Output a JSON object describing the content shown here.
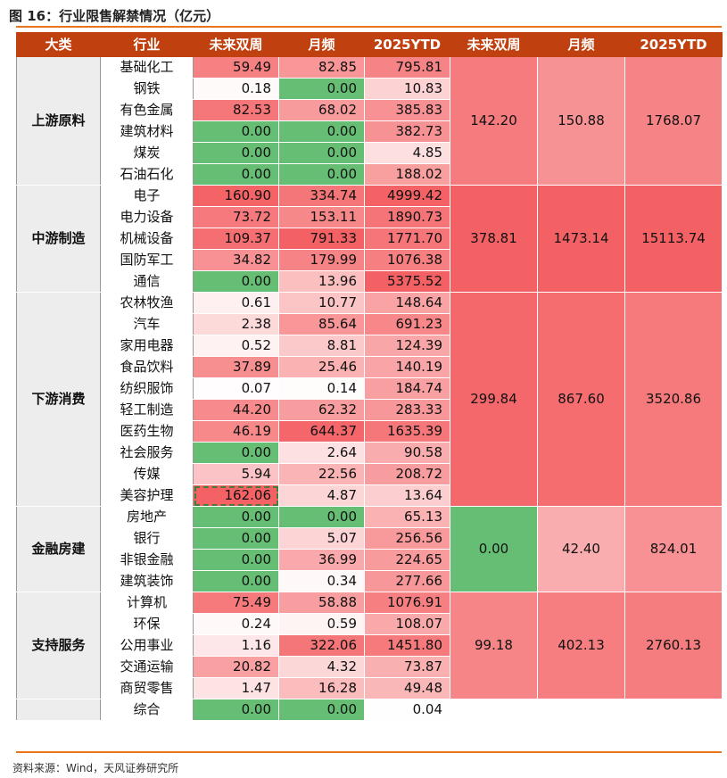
{
  "title": "图 16：行业限售解禁情况（亿元）",
  "source": "资料来源：Wind，天风证券研究所",
  "headers": [
    "大类",
    "行业",
    "未来双周",
    "月频",
    "2025YTD",
    "未来双周",
    "月频",
    "2025YTD"
  ],
  "colors": {
    "header": "#C0410F",
    "accent_line": "#E8741C",
    "zero_green": "#66BE74",
    "high_red": "#F46164",
    "category_bg": "#EDEDED"
  },
  "groups": [
    {
      "category": "上游原料",
      "agg": [
        "142.20",
        "150.88",
        "1768.07"
      ],
      "rows": [
        [
          "基础化工",
          "59.49",
          "82.85",
          "795.81"
        ],
        [
          "钢铁",
          "0.18",
          "0.00",
          "10.83"
        ],
        [
          "有色金属",
          "82.53",
          "68.02",
          "385.83"
        ],
        [
          "建筑材料",
          "0.00",
          "0.00",
          "382.73"
        ],
        [
          "煤炭",
          "0.00",
          "0.00",
          "4.85"
        ],
        [
          "石油石化",
          "0.00",
          "0.00",
          "188.02"
        ]
      ]
    },
    {
      "category": "中游制造",
      "agg": [
        "378.81",
        "1473.14",
        "15113.74"
      ],
      "rows": [
        [
          "电子",
          "160.90",
          "334.74",
          "4999.42"
        ],
        [
          "电力设备",
          "73.72",
          "153.11",
          "1890.73"
        ],
        [
          "机械设备",
          "109.37",
          "791.33",
          "1771.70"
        ],
        [
          "国防军工",
          "34.82",
          "179.99",
          "1076.38"
        ],
        [
          "通信",
          "0.00",
          "13.96",
          "5375.52"
        ]
      ]
    },
    {
      "category": "下游消费",
      "agg": [
        "299.84",
        "867.60",
        "3520.86"
      ],
      "rows": [
        [
          "农林牧渔",
          "0.61",
          "10.77",
          "148.64"
        ],
        [
          "汽车",
          "2.38",
          "85.64",
          "691.23"
        ],
        [
          "家用电器",
          "0.52",
          "8.81",
          "124.39"
        ],
        [
          "食品饮料",
          "37.89",
          "25.46",
          "140.19"
        ],
        [
          "纺织服饰",
          "0.07",
          "0.14",
          "184.74"
        ],
        [
          "轻工制造",
          "44.20",
          "62.32",
          "283.33"
        ],
        [
          "医药生物",
          "46.19",
          "644.37",
          "1635.39"
        ],
        [
          "社会服务",
          "0.00",
          "2.64",
          "90.58"
        ],
        [
          "传媒",
          "5.94",
          "22.56",
          "208.72"
        ],
        [
          "美容护理",
          "162.06",
          "4.87",
          "13.64"
        ]
      ]
    },
    {
      "category": "金融房建",
      "agg": [
        "0.00",
        "42.40",
        "824.01"
      ],
      "rows": [
        [
          "房地产",
          "0.00",
          "0.00",
          "65.13"
        ],
        [
          "银行",
          "0.00",
          "5.07",
          "256.56"
        ],
        [
          "非银金融",
          "0.00",
          "36.99",
          "224.65"
        ],
        [
          "建筑装饰",
          "0.00",
          "0.34",
          "277.66"
        ]
      ]
    },
    {
      "category": "支持服务",
      "agg": [
        "99.18",
        "402.13",
        "2760.13"
      ],
      "rows": [
        [
          "计算机",
          "75.49",
          "58.88",
          "1076.91"
        ],
        [
          "环保",
          "0.24",
          "0.59",
          "108.07"
        ],
        [
          "公用事业",
          "1.16",
          "322.06",
          "1451.80"
        ],
        [
          "交通运输",
          "20.82",
          "4.32",
          "73.87"
        ],
        [
          "商贸零售",
          "1.47",
          "16.28",
          "49.48"
        ]
      ]
    },
    {
      "category": "",
      "agg": [
        "",
        "",
        ""
      ],
      "rows": [
        [
          "综合",
          "0.00",
          "0.00",
          "0.04"
        ]
      ]
    }
  ]
}
